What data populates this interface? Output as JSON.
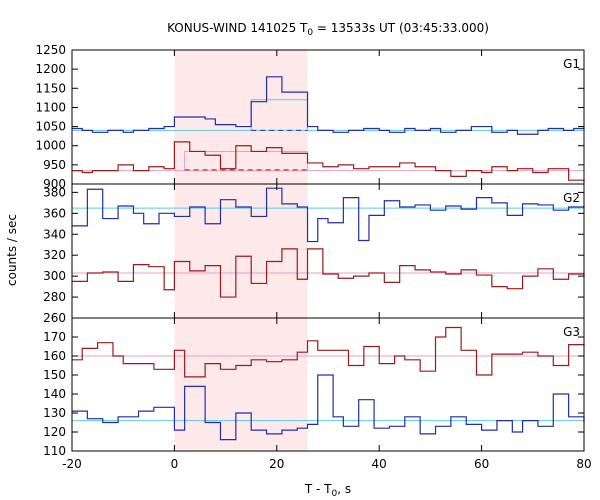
{
  "chart_data": {
    "type": "line",
    "title": "KONUS-WIND 141025 T",
    "title_sub": "0",
    "title_rest": " = 13533s UT (03:45:33.000)",
    "xlabel": "T - T",
    "xlabel_sub": "0",
    "xlabel_rest": ", s",
    "ylabel": "counts / sec",
    "xlim": [
      -20,
      80
    ],
    "x_ticks": [
      -20,
      0,
      20,
      40,
      60,
      80
    ],
    "highlight": {
      "x": [
        0,
        26
      ],
      "color": "#fde8ea"
    },
    "colors": {
      "blue": "#1f2fa8",
      "red": "#9b1b1b",
      "cyan": "#5fc8e8",
      "pink": "#e8a0c8"
    },
    "panels": [
      {
        "label": "G1",
        "ylim": [
          900,
          1250
        ],
        "y_ticks": [
          900,
          950,
          1000,
          1050,
          1100,
          1150,
          1200,
          1250
        ],
        "baselines": [
          {
            "value": 1040,
            "color": "cyan"
          },
          {
            "value": 935,
            "color": "pink"
          }
        ],
        "extra": {
          "cyan_step": {
            "x": [
              15,
              26
            ],
            "y": [
              1040,
              1120
            ],
            "dash_x": [
              15,
              26
            ],
            "dash_y": 1040
          },
          "pink_step": {
            "x": [
              2,
              26
            ],
            "y": [
              935,
              985
            ],
            "dash_x": [
              2,
              26
            ],
            "dash_y": 937
          }
        },
        "series": [
          {
            "color": "blue",
            "x": [
              -20,
              -18,
              -16,
              -13,
              -10,
              -8,
              -5,
              -2,
              0,
              6,
              8,
              12,
              15,
              18,
              21,
              26,
              28,
              31,
              34,
              37,
              40,
              42,
              45,
              47,
              50,
              52,
              55,
              58,
              62,
              65,
              67,
              71,
              73,
              76,
              78,
              80
            ],
            "y": [
              1045,
              1040,
              1035,
              1040,
              1035,
              1040,
              1045,
              1050,
              1075,
              1070,
              1055,
              1050,
              1115,
              1180,
              1140,
              1050,
              1040,
              1035,
              1040,
              1045,
              1040,
              1035,
              1045,
              1040,
              1045,
              1035,
              1040,
              1050,
              1035,
              1040,
              1030,
              1040,
              1045,
              1040,
              1045,
              1050
            ]
          },
          {
            "color": "red",
            "x": [
              -20,
              -18,
              -16,
              -11,
              -8,
              -5,
              -2,
              0,
              3,
              6,
              9,
              12,
              15,
              18,
              21,
              26,
              29,
              32,
              35,
              38,
              41,
              44,
              47,
              51,
              54,
              57,
              60,
              62,
              65,
              67,
              70,
              73,
              77,
              80
            ],
            "y": [
              935,
              930,
              935,
              950,
              935,
              945,
              940,
              1010,
              985,
              975,
              940,
              1000,
              985,
              995,
              980,
              955,
              945,
              950,
              940,
              945,
              945,
              955,
              945,
              935,
              920,
              935,
              930,
              945,
              935,
              940,
              930,
              940,
              910,
              905
            ]
          }
        ]
      },
      {
        "label": "G2",
        "ylim": [
          260,
          388
        ],
        "y_ticks": [
          260,
          280,
          300,
          320,
          340,
          360,
          380
        ],
        "baselines": [
          {
            "value": 365,
            "color": "cyan"
          },
          {
            "value": 303,
            "color": "pink"
          }
        ],
        "series": [
          {
            "color": "blue",
            "x": [
              -20,
              -17,
              -14,
              -11,
              -8,
              -6,
              -3,
              0,
              3,
              6,
              9,
              12,
              15,
              18,
              21,
              24,
              26,
              28,
              30,
              33,
              36,
              38,
              41,
              44,
              47,
              50,
              53,
              56,
              59,
              62,
              65,
              68,
              71,
              74,
              77,
              80
            ],
            "y": [
              348,
              383,
              355,
              367,
              360,
              350,
              360,
              357,
              366,
              350,
              373,
              366,
              357,
              384,
              369,
              366,
              333,
              355,
              351,
              375,
              334,
              358,
              372,
              366,
              368,
              363,
              367,
              364,
              375,
              370,
              358,
              369,
              368,
              363,
              366,
              368
            ]
          },
          {
            "color": "red",
            "x": [
              -20,
              -17,
              -14,
              -11,
              -8,
              -5,
              -2,
              0,
              3,
              6,
              9,
              12,
              15,
              18,
              21,
              24,
              26,
              29,
              32,
              35,
              38,
              41,
              44,
              47,
              50,
              53,
              56,
              59,
              62,
              65,
              68,
              71,
              74,
              77,
              80
            ],
            "y": [
              295,
              303,
              304,
              295,
              311,
              309,
              287,
              314,
              305,
              310,
              280,
              319,
              293,
              314,
              326,
              297,
              326,
              302,
              298,
              300,
              303,
              294,
              310,
              306,
              304,
              302,
              306,
              301,
              290,
              288,
              300,
              307,
              297,
              302,
              299
            ]
          }
        ]
      },
      {
        "label": "G3",
        "ylim": [
          110,
          180
        ],
        "y_ticks": [
          110,
          120,
          130,
          140,
          150,
          160,
          170
        ],
        "baselines": [
          {
            "value": 126,
            "color": "cyan"
          },
          {
            "value": 160,
            "color": "pink"
          }
        ],
        "series": [
          {
            "color": "blue",
            "x": [
              -20,
              -17,
              -14,
              -11,
              -7,
              -4,
              0,
              2,
              6,
              9,
              12,
              15,
              18,
              21,
              24,
              26,
              28,
              31,
              33,
              36,
              39,
              42,
              45,
              48,
              51,
              54,
              57,
              60,
              63,
              66,
              68,
              71,
              74,
              77,
              80
            ],
            "y": [
              131,
              127,
              125,
              128,
              131,
              133,
              121,
              144,
              125,
              116,
              130,
              121,
              119,
              121,
              122,
              124,
              150,
              128,
              123,
              137,
              122,
              123,
              128,
              119,
              123,
              128,
              124,
              121,
              126,
              120,
              126,
              123,
              140,
              128,
              125
            ]
          },
          {
            "color": "red",
            "x": [
              -20,
              -18,
              -15,
              -12,
              -10,
              -8,
              -4,
              0,
              2,
              6,
              9,
              12,
              15,
              18,
              21,
              24,
              26,
              28,
              31,
              34,
              37,
              40,
              43,
              45,
              48,
              51,
              53,
              56,
              59,
              62,
              65,
              68,
              71,
              74,
              77,
              80
            ],
            "y": [
              158,
              164,
              167,
              160,
              156,
              156,
              153,
              163,
              149,
              156,
              153,
              155,
              158,
              157,
              158,
              162,
              168,
              163,
              163,
              155,
              165,
              156,
              160,
              158,
              152,
              170,
              175,
              163,
              150,
              161,
              161,
              162,
              160,
              155,
              166,
              165
            ]
          }
        ]
      }
    ]
  }
}
